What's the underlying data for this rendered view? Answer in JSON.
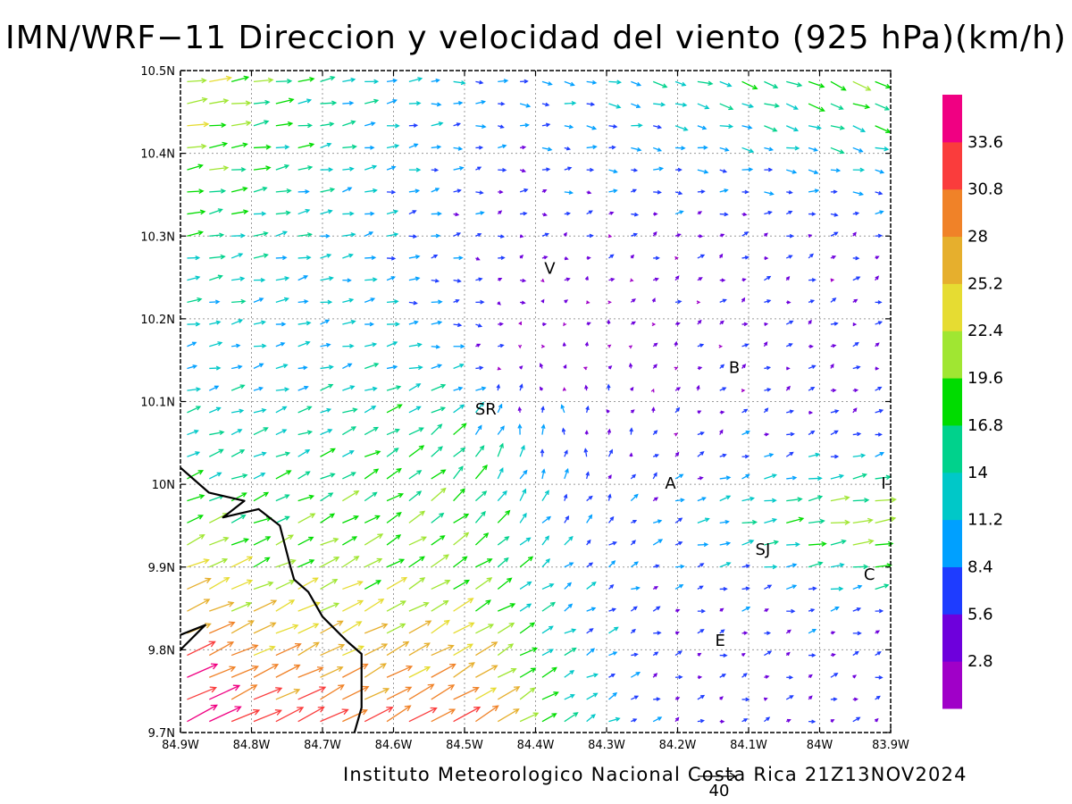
{
  "title": "IMN/WRF−11 Direccion y velocidad del viento (925 hPa)(km/h)",
  "footer": "Instituto Meteorologico Nacional Costa Rica 21Z13NOV2024",
  "reference_vector": {
    "label": "40",
    "magnitude": 40
  },
  "map": {
    "lon_range": [
      -84.9,
      -83.9
    ],
    "lat_range": [
      9.7,
      10.5
    ],
    "x_tick_labels": [
      "84.9W",
      "84.8W",
      "84.7W",
      "84.6W",
      "84.5W",
      "84.4W",
      "84.3W",
      "84.2W",
      "84.1W",
      "84W",
      "83.9W"
    ],
    "y_tick_labels": [
      "9.7N",
      "9.8N",
      "9.9N",
      "10N",
      "10.1N",
      "10.2N",
      "10.3N",
      "10.4N",
      "10.5N"
    ],
    "x_tick_values": [
      -84.9,
      -84.8,
      -84.7,
      -84.6,
      -84.5,
      -84.4,
      -84.3,
      -84.2,
      -84.1,
      -84.0,
      -83.9
    ],
    "y_tick_values": [
      9.7,
      9.8,
      9.9,
      10.0,
      10.1,
      10.2,
      10.3,
      10.4,
      10.5
    ],
    "grid": true,
    "city_labels": [
      {
        "text": "V",
        "lon": -84.38,
        "lat": 10.26
      },
      {
        "text": "SR",
        "lon": -84.47,
        "lat": 10.09
      },
      {
        "text": "B",
        "lon": -84.12,
        "lat": 10.14
      },
      {
        "text": "A",
        "lon": -84.21,
        "lat": 10.0
      },
      {
        "text": "I",
        "lon": -83.91,
        "lat": 10.0
      },
      {
        "text": "SJ",
        "lon": -84.08,
        "lat": 9.92
      },
      {
        "text": "C",
        "lon": -83.93,
        "lat": 9.89
      },
      {
        "text": "E",
        "lon": -84.14,
        "lat": 9.81
      }
    ],
    "coastline": [
      [
        -84.9,
        10.02
      ],
      [
        -84.86,
        9.99
      ],
      [
        -84.81,
        9.98
      ],
      [
        -84.84,
        9.96
      ],
      [
        -84.79,
        9.97
      ],
      [
        -84.76,
        9.95
      ],
      [
        -84.745,
        9.9
      ],
      [
        -84.74,
        9.885
      ],
      [
        -84.72,
        9.87
      ],
      [
        -84.7,
        9.84
      ],
      [
        -84.665,
        9.81
      ],
      [
        -84.645,
        9.795
      ],
      [
        -84.645,
        9.73
      ],
      [
        -84.655,
        9.7
      ]
    ],
    "coastline2": [
      [
        -84.9,
        9.8
      ],
      [
        -84.865,
        9.83
      ],
      [
        -84.9,
        9.818
      ]
    ]
  },
  "colorbar": {
    "colors": [
      "#a000c8",
      "#6e00dc",
      "#1e3cff",
      "#00a0ff",
      "#00c8c8",
      "#00d28c",
      "#00dc00",
      "#a0e632",
      "#e6dc32",
      "#e6af2d",
      "#f08228",
      "#fa3c3c",
      "#f00082"
    ],
    "labels": [
      "2.8",
      "5.6",
      "8.4",
      "11.2",
      "14",
      "16.8",
      "19.6",
      "22.4",
      "25.2",
      "28",
      "30.8",
      "33.6"
    ],
    "bounds": [
      0,
      2.8,
      5.6,
      8.4,
      11.2,
      14,
      16.8,
      19.6,
      22.4,
      25.2,
      28,
      30.8,
      33.6,
      40
    ]
  }
}
